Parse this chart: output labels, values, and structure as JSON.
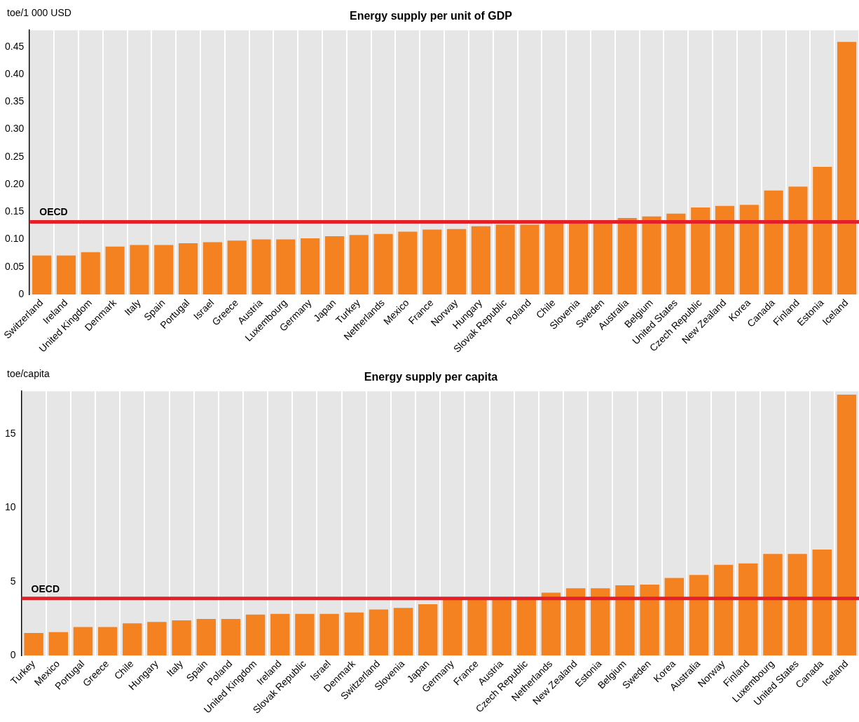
{
  "chart_data": [
    {
      "type": "bar",
      "title": "Energy supply per unit of GDP",
      "ylabel": "toe/1 000 USD",
      "categories": [
        "Switzerland",
        "Ireland",
        "United Kingdom",
        "Denmark",
        "Italy",
        "Spain",
        "Portugal",
        "Israel",
        "Greece",
        "Austria",
        "Luxembourg",
        "Germany",
        "Japan",
        "Turkey",
        "Netherlands",
        "Mexico",
        "France",
        "Norway",
        "Hungary",
        "Slovak Republic",
        "Poland",
        "Chile",
        "Slovenia",
        "Sweden",
        "Australia",
        "Belgium",
        "United States",
        "Czech Republic",
        "New Zealand",
        "Korea",
        "Canada",
        "Finland",
        "Estonia",
        "Iceland"
      ],
      "values": [
        0.071,
        0.071,
        0.077,
        0.087,
        0.09,
        0.09,
        0.093,
        0.095,
        0.098,
        0.1,
        0.1,
        0.102,
        0.106,
        0.108,
        0.11,
        0.114,
        0.118,
        0.119,
        0.124,
        0.127,
        0.127,
        0.13,
        0.13,
        0.13,
        0.139,
        0.142,
        0.147,
        0.158,
        0.161,
        0.163,
        0.189,
        0.196,
        0.232,
        0.459
      ],
      "color": "#f58220",
      "ylim": [
        0,
        0.48
      ],
      "yticks": [
        {
          "value": 0,
          "label": "0"
        },
        {
          "value": 0.05,
          "label": "0.05"
        },
        {
          "value": 0.1,
          "label": "0.10"
        },
        {
          "value": 0.15,
          "label": "0.15"
        },
        {
          "value": 0.2,
          "label": "0.20"
        },
        {
          "value": 0.25,
          "label": "0.25"
        },
        {
          "value": 0.3,
          "label": "0.30"
        },
        {
          "value": 0.35,
          "label": "0.35"
        },
        {
          "value": 0.4,
          "label": "0.40"
        },
        {
          "value": 0.45,
          "label": "0.45"
        }
      ],
      "grid": "x",
      "ref_lines": [
        {
          "axis": "y",
          "value": 0.132,
          "label": "OECD",
          "color": "#e3202a"
        }
      ]
    },
    {
      "type": "bar",
      "title": "Energy supply per capita",
      "ylabel": "toe/capita",
      "categories": [
        "Turkey",
        "Mexico",
        "Portugal",
        "Greece",
        "Chile",
        "Hungary",
        "Italy",
        "Spain",
        "Poland",
        "United Kingdom",
        "Ireland",
        "Slovak Republic",
        "Israel",
        "Denmark",
        "Switzerland",
        "Slovenia",
        "Japan",
        "Germany",
        "France",
        "Austria",
        "Czech Republic",
        "Netherlands",
        "New Zealand",
        "Estonia",
        "Belgium",
        "Sweden",
        "Korea",
        "Australia",
        "Norway",
        "Finland",
        "Luxembourg",
        "United States",
        "Canada",
        "Iceland"
      ],
      "values": [
        1.53,
        1.58,
        1.93,
        1.93,
        2.18,
        2.28,
        2.38,
        2.48,
        2.48,
        2.77,
        2.82,
        2.82,
        2.82,
        2.92,
        3.12,
        3.22,
        3.47,
        3.9,
        3.9,
        3.9,
        3.9,
        4.26,
        4.55,
        4.55,
        4.75,
        4.8,
        5.25,
        5.45,
        6.14,
        6.24,
        6.88,
        6.88,
        7.18,
        17.67
      ],
      "color": "#f58220",
      "ylim": [
        0,
        17.9
      ],
      "yticks": [
        0,
        5,
        10,
        15
      ],
      "grid": "x",
      "ref_lines": [
        {
          "axis": "y",
          "value": 3.86,
          "label": "OECD",
          "color": "#e3202a"
        }
      ]
    }
  ]
}
